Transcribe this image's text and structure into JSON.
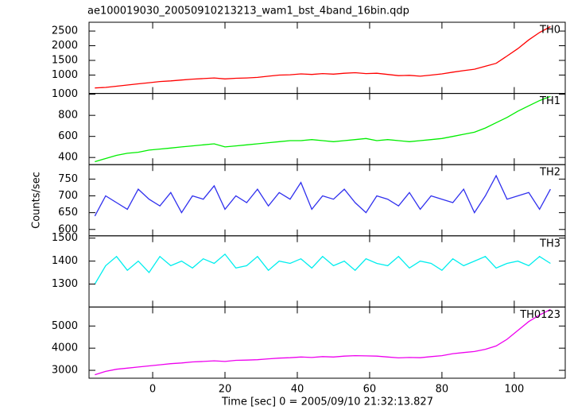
{
  "title": "ae100019030_20050910213213_wam1_bst_4band_16bin.qdp",
  "ylabel": "Counts/sec",
  "xlabel": "Time [sec] 0 = 2005/09/10 21:32:13.827",
  "chart_data": [
    {
      "type": "line",
      "label": "TH0",
      "xlim": [
        -17.6,
        114.1
      ],
      "xticks": [
        0,
        20,
        40,
        60,
        80,
        100
      ],
      "ylim": [
        373,
        2800
      ],
      "yticks": [
        1000,
        1500,
        2000,
        2500
      ],
      "x": [
        -16,
        -13,
        -10,
        -7,
        -4,
        -1,
        2,
        5,
        8,
        11,
        14,
        17,
        20,
        23,
        26,
        29,
        32,
        35,
        38,
        41,
        44,
        47,
        50,
        53,
        56,
        59,
        62,
        65,
        68,
        71,
        74,
        77,
        80,
        83,
        86,
        89,
        92,
        95,
        98,
        101,
        104,
        107,
        110
      ],
      "series": [
        {
          "color": "#ff0000",
          "values": [
            560,
            580,
            620,
            660,
            700,
            740,
            780,
            800,
            830,
            860,
            880,
            900,
            870,
            890,
            900,
            920,
            960,
            1000,
            1010,
            1040,
            1020,
            1050,
            1030,
            1060,
            1080,
            1050,
            1060,
            1020,
            980,
            990,
            960,
            1000,
            1040,
            1100,
            1150,
            1200,
            1300,
            1400,
            1650,
            1900,
            2200,
            2450,
            2650
          ]
        }
      ]
    },
    {
      "type": "line",
      "label": "TH1",
      "xlim": [
        -17.6,
        114.1
      ],
      "xticks": [
        0,
        20,
        40,
        60,
        80,
        100
      ],
      "ylim": [
        332,
        1008
      ],
      "yticks": [
        400,
        600,
        800,
        1000
      ],
      "x": [
        -16,
        -13,
        -10,
        -7,
        -4,
        -1,
        2,
        5,
        8,
        11,
        14,
        17,
        20,
        23,
        26,
        29,
        32,
        35,
        38,
        41,
        44,
        47,
        50,
        53,
        56,
        59,
        62,
        65,
        68,
        71,
        74,
        77,
        80,
        83,
        86,
        89,
        92,
        95,
        98,
        101,
        104,
        107,
        110
      ],
      "series": [
        {
          "color": "#00ee00",
          "values": [
            360,
            390,
            420,
            440,
            450,
            470,
            480,
            490,
            500,
            510,
            520,
            530,
            500,
            510,
            520,
            530,
            540,
            550,
            560,
            560,
            570,
            560,
            550,
            560,
            570,
            580,
            560,
            570,
            560,
            550,
            560,
            570,
            580,
            600,
            620,
            640,
            680,
            730,
            780,
            840,
            890,
            940,
            980
          ]
        }
      ]
    },
    {
      "type": "line",
      "label": "TH2",
      "xlim": [
        -17.6,
        114.1
      ],
      "xticks": [
        0,
        20,
        40,
        60,
        80,
        100
      ],
      "ylim": [
        581,
        793
      ],
      "yticks": [
        600,
        650,
        700,
        750
      ],
      "x": [
        -16,
        -13,
        -10,
        -7,
        -4,
        -1,
        2,
        5,
        8,
        11,
        14,
        17,
        20,
        23,
        26,
        29,
        32,
        35,
        38,
        41,
        44,
        47,
        50,
        53,
        56,
        59,
        62,
        65,
        68,
        71,
        74,
        77,
        80,
        83,
        86,
        89,
        92,
        95,
        98,
        101,
        104,
        107,
        110
      ],
      "series": [
        {
          "color": "#3030ee",
          "values": [
            640,
            700,
            680,
            660,
            720,
            690,
            670,
            710,
            650,
            700,
            690,
            730,
            660,
            700,
            680,
            720,
            670,
            710,
            690,
            740,
            660,
            700,
            690,
            720,
            680,
            650,
            700,
            690,
            670,
            710,
            660,
            700,
            690,
            680,
            720,
            650,
            700,
            760,
            690,
            700,
            710,
            660,
            720
          ]
        }
      ]
    },
    {
      "type": "line",
      "label": "TH3",
      "xlim": [
        -17.6,
        114.1
      ],
      "xticks": [
        0,
        20,
        40,
        60,
        80,
        100
      ],
      "ylim": [
        1200,
        1510
      ],
      "yticks": [
        1300,
        1400,
        1500
      ],
      "x": [
        -16,
        -13,
        -10,
        -7,
        -4,
        -1,
        2,
        5,
        8,
        11,
        14,
        17,
        20,
        23,
        26,
        29,
        32,
        35,
        38,
        41,
        44,
        47,
        50,
        53,
        56,
        59,
        62,
        65,
        68,
        71,
        74,
        77,
        80,
        83,
        86,
        89,
        92,
        95,
        98,
        101,
        104,
        107,
        110
      ],
      "series": [
        {
          "color": "#00eeee",
          "values": [
            1300,
            1380,
            1420,
            1360,
            1400,
            1350,
            1420,
            1380,
            1400,
            1370,
            1410,
            1390,
            1430,
            1370,
            1380,
            1420,
            1360,
            1400,
            1390,
            1410,
            1370,
            1420,
            1380,
            1400,
            1360,
            1410,
            1390,
            1380,
            1420,
            1370,
            1400,
            1390,
            1360,
            1410,
            1380,
            1400,
            1420,
            1370,
            1390,
            1400,
            1380,
            1420,
            1390
          ]
        }
      ]
    },
    {
      "type": "line",
      "label": "TH0123",
      "xlim": [
        -17.6,
        114.1
      ],
      "xticks": [
        0,
        20,
        40,
        60,
        80,
        100
      ],
      "ylim": [
        2643,
        5857
      ],
      "yticks": [
        3000,
        4000,
        5000
      ],
      "x": [
        -16,
        -13,
        -10,
        -7,
        -4,
        -1,
        2,
        5,
        8,
        11,
        14,
        17,
        20,
        23,
        26,
        29,
        32,
        35,
        38,
        41,
        44,
        47,
        50,
        53,
        56,
        59,
        62,
        65,
        68,
        71,
        74,
        77,
        80,
        83,
        86,
        89,
        92,
        95,
        98,
        101,
        104,
        107,
        110
      ],
      "series": [
        {
          "color": "#ee00ee",
          "values": [
            2800,
            2950,
            3050,
            3100,
            3150,
            3200,
            3250,
            3300,
            3330,
            3380,
            3400,
            3430,
            3400,
            3450,
            3460,
            3480,
            3520,
            3550,
            3570,
            3600,
            3580,
            3620,
            3600,
            3640,
            3660,
            3650,
            3640,
            3600,
            3560,
            3580,
            3570,
            3620,
            3660,
            3750,
            3800,
            3850,
            3950,
            4100,
            4400,
            4800,
            5200,
            5500,
            5750
          ]
        }
      ]
    }
  ]
}
